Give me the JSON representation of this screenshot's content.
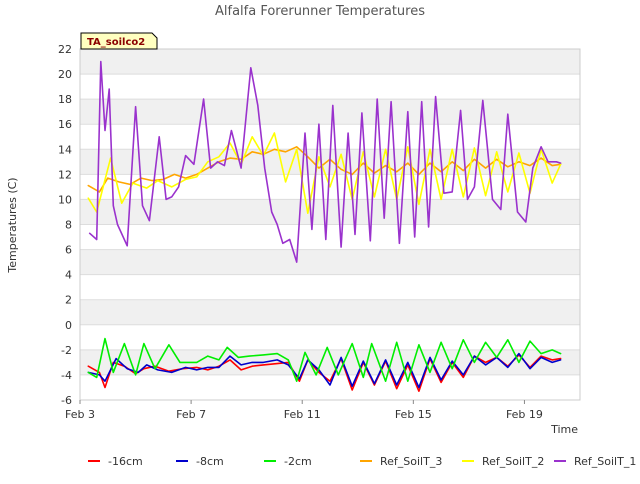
{
  "chart_data": {
    "type": "line",
    "title": "Alfalfa Forerunner Temperatures",
    "xlabel": "Time",
    "ylabel": "Temperatures (C)",
    "badge": "TA_soilco2",
    "x_unit": "day of February (approx.)",
    "xlim": [
      3.0,
      21.0
    ],
    "ylim": [
      -6,
      22
    ],
    "yticks": [
      -6,
      -4,
      -2,
      0,
      2,
      4,
      6,
      8,
      10,
      12,
      14,
      16,
      18,
      20,
      22
    ],
    "xticks": [
      {
        "value": 3,
        "label": "Feb 3"
      },
      {
        "value": 7,
        "label": "Feb 7"
      },
      {
        "value": 11,
        "label": "Feb 11"
      },
      {
        "value": 15,
        "label": "Feb 15"
      },
      {
        "value": 19,
        "label": "Feb 19"
      }
    ],
    "grid": "horizontal bands",
    "legend_position": "bottom",
    "series": [
      {
        "name": "-16cm",
        "color": "#ff0000",
        "x": [
          3.3,
          3.7,
          3.9,
          4.2,
          4.6,
          5.0,
          5.3,
          5.7,
          6.2,
          6.7,
          7.2,
          7.6,
          8.0,
          8.4,
          8.8,
          9.2,
          9.6,
          10.1,
          10.5,
          10.9,
          11.2,
          11.6,
          12.0,
          12.4,
          12.8,
          13.2,
          13.6,
          14.0,
          14.4,
          14.8,
          15.2,
          15.6,
          16.0,
          16.4,
          16.8,
          17.2,
          17.6,
          18.0,
          18.4,
          18.8,
          19.2,
          19.6,
          20.0,
          20.3
        ],
        "y": [
          -3.3,
          -3.8,
          -5.0,
          -3.0,
          -3.3,
          -3.9,
          -3.5,
          -3.3,
          -3.7,
          -3.5,
          -3.4,
          -3.6,
          -3.3,
          -2.8,
          -3.6,
          -3.3,
          -3.2,
          -3.1,
          -3.0,
          -4.5,
          -2.8,
          -3.8,
          -4.5,
          -2.7,
          -5.2,
          -3.0,
          -4.8,
          -2.9,
          -5.1,
          -3.2,
          -5.3,
          -2.7,
          -4.6,
          -3.0,
          -4.2,
          -2.5,
          -3.0,
          -2.6,
          -3.3,
          -2.4,
          -3.4,
          -2.5,
          -2.8,
          -2.7
        ]
      },
      {
        "name": "-8cm",
        "color": "#0000cc",
        "x": [
          3.3,
          3.7,
          3.9,
          4.3,
          4.7,
          5.1,
          5.4,
          5.8,
          6.3,
          6.8,
          7.2,
          7.6,
          8.0,
          8.4,
          8.8,
          9.2,
          9.6,
          10.1,
          10.5,
          10.9,
          11.2,
          11.6,
          12.0,
          12.4,
          12.8,
          13.2,
          13.6,
          14.0,
          14.4,
          14.8,
          15.2,
          15.6,
          16.0,
          16.4,
          16.8,
          17.2,
          17.6,
          18.0,
          18.4,
          18.8,
          19.2,
          19.6,
          20.0,
          20.3
        ],
        "y": [
          -3.8,
          -4.0,
          -4.5,
          -2.7,
          -3.5,
          -3.8,
          -3.2,
          -3.6,
          -3.8,
          -3.4,
          -3.6,
          -3.4,
          -3.4,
          -2.5,
          -3.2,
          -3.0,
          -3.0,
          -2.8,
          -3.2,
          -4.3,
          -2.8,
          -3.6,
          -4.8,
          -2.6,
          -4.9,
          -2.9,
          -4.7,
          -2.8,
          -4.8,
          -3.0,
          -5.0,
          -2.6,
          -4.4,
          -2.9,
          -4.0,
          -2.5,
          -3.2,
          -2.6,
          -3.4,
          -2.3,
          -3.5,
          -2.6,
          -3.0,
          -2.8
        ]
      },
      {
        "name": "-2cm",
        "color": "#00ee00",
        "x": [
          3.3,
          3.6,
          3.9,
          4.2,
          4.6,
          5.0,
          5.3,
          5.7,
          6.2,
          6.6,
          7.2,
          7.6,
          8.0,
          8.3,
          8.7,
          9.1,
          9.6,
          10.1,
          10.5,
          10.8,
          11.1,
          11.5,
          11.9,
          12.3,
          12.8,
          13.2,
          13.5,
          14.0,
          14.4,
          14.8,
          15.2,
          15.6,
          16.0,
          16.4,
          16.8,
          17.2,
          17.6,
          18.0,
          18.4,
          18.8,
          19.2,
          19.6,
          20.0,
          20.3
        ],
        "y": [
          -3.8,
          -4.2,
          -1.1,
          -3.8,
          -1.5,
          -4.0,
          -1.5,
          -3.5,
          -1.6,
          -3.0,
          -3.0,
          -2.5,
          -2.8,
          -1.8,
          -2.6,
          -2.5,
          -2.4,
          -2.3,
          -2.8,
          -4.5,
          -2.2,
          -4.0,
          -1.8,
          -4.0,
          -1.5,
          -4.2,
          -1.5,
          -4.5,
          -1.4,
          -4.5,
          -1.6,
          -3.8,
          -1.4,
          -3.5,
          -1.2,
          -3.0,
          -1.4,
          -2.6,
          -1.2,
          -3.0,
          -1.3,
          -2.3,
          -2.0,
          -2.3
        ]
      },
      {
        "name": "Ref_SoilT_3",
        "color": "#ffa500",
        "x": [
          3.3,
          3.7,
          4.0,
          4.4,
          4.8,
          5.2,
          5.6,
          6.0,
          6.4,
          6.8,
          7.2,
          7.6,
          8.0,
          8.4,
          8.8,
          9.2,
          9.6,
          10.0,
          10.4,
          10.8,
          11.2,
          11.6,
          12.0,
          12.4,
          12.8,
          13.2,
          13.6,
          14.0,
          14.4,
          14.8,
          15.2,
          15.6,
          16.0,
          16.4,
          16.8,
          17.2,
          17.6,
          18.0,
          18.4,
          18.8,
          19.2,
          19.6,
          20.0,
          20.3
        ],
        "y": [
          11.1,
          10.6,
          11.7,
          11.4,
          11.2,
          11.7,
          11.5,
          11.6,
          12.0,
          11.7,
          12.0,
          12.5,
          13.0,
          13.3,
          13.2,
          13.8,
          13.6,
          14.0,
          13.8,
          14.2,
          13.4,
          12.5,
          13.2,
          12.4,
          12.0,
          12.9,
          12.1,
          12.7,
          12.2,
          12.9,
          12.0,
          12.9,
          12.2,
          13.0,
          12.3,
          13.2,
          12.5,
          13.2,
          12.6,
          13.0,
          12.7,
          13.3,
          12.7,
          12.8
        ]
      },
      {
        "name": "Ref_SoilT_2",
        "color": "#ffff00",
        "x": [
          3.3,
          3.6,
          4.1,
          4.5,
          4.9,
          5.4,
          5.8,
          6.3,
          6.8,
          7.2,
          7.6,
          8.0,
          8.4,
          8.8,
          9.2,
          9.6,
          10.0,
          10.4,
          10.8,
          11.2,
          11.6,
          12.0,
          12.4,
          12.8,
          13.2,
          13.6,
          14.0,
          14.4,
          14.8,
          15.2,
          15.6,
          16.0,
          16.4,
          16.8,
          17.2,
          17.6,
          18.0,
          18.4,
          18.8,
          19.2,
          19.6,
          20.0,
          20.3
        ],
        "y": [
          10.1,
          9.0,
          13.3,
          9.7,
          11.3,
          10.9,
          11.5,
          11.0,
          11.6,
          11.8,
          13.0,
          13.4,
          14.5,
          12.8,
          15.0,
          13.5,
          15.3,
          11.4,
          14.0,
          8.9,
          13.4,
          11.0,
          13.6,
          10.0,
          13.8,
          10.2,
          14.0,
          10.0,
          14.2,
          9.6,
          14.0,
          10.0,
          14.0,
          10.2,
          14.1,
          10.3,
          13.8,
          10.6,
          13.7,
          10.5,
          14.0,
          11.3,
          12.8
        ]
      },
      {
        "name": "Ref_SoilT_1",
        "color": "#9a32cd",
        "x": [
          3.35,
          3.6,
          3.75,
          3.9,
          4.05,
          4.2,
          4.35,
          4.7,
          5.0,
          5.25,
          5.5,
          5.85,
          6.1,
          6.3,
          6.55,
          6.8,
          7.1,
          7.45,
          7.7,
          7.95,
          8.2,
          8.45,
          8.8,
          9.15,
          9.4,
          9.65,
          9.9,
          10.1,
          10.3,
          10.55,
          10.8,
          11.1,
          11.35,
          11.6,
          11.85,
          12.1,
          12.4,
          12.65,
          12.9,
          13.15,
          13.45,
          13.7,
          13.95,
          14.2,
          14.5,
          14.8,
          15.05,
          15.3,
          15.55,
          15.8,
          16.1,
          16.4,
          16.7,
          16.95,
          17.2,
          17.5,
          17.85,
          18.15,
          18.4,
          18.75,
          19.05,
          19.3,
          19.6,
          19.85,
          20.15,
          20.3
        ],
        "y": [
          7.3,
          6.8,
          21.0,
          15.5,
          18.8,
          9.5,
          8.0,
          6.3,
          17.4,
          9.5,
          8.3,
          15.0,
          10.0,
          10.2,
          11.0,
          13.5,
          12.8,
          18.0,
          12.5,
          13.0,
          12.7,
          15.5,
          12.5,
          20.5,
          17.5,
          12.5,
          9.0,
          8.0,
          6.5,
          6.8,
          5.0,
          15.3,
          7.6,
          16.0,
          6.8,
          17.5,
          6.2,
          15.3,
          7.2,
          16.9,
          6.7,
          18.0,
          8.5,
          17.8,
          6.5,
          17.0,
          7.0,
          17.8,
          7.8,
          18.2,
          10.5,
          10.6,
          17.1,
          10.0,
          11.0,
          17.9,
          10.0,
          9.2,
          16.8,
          9.0,
          8.2,
          12.5,
          14.2,
          13.0,
          13.0,
          12.9
        ]
      }
    ]
  }
}
